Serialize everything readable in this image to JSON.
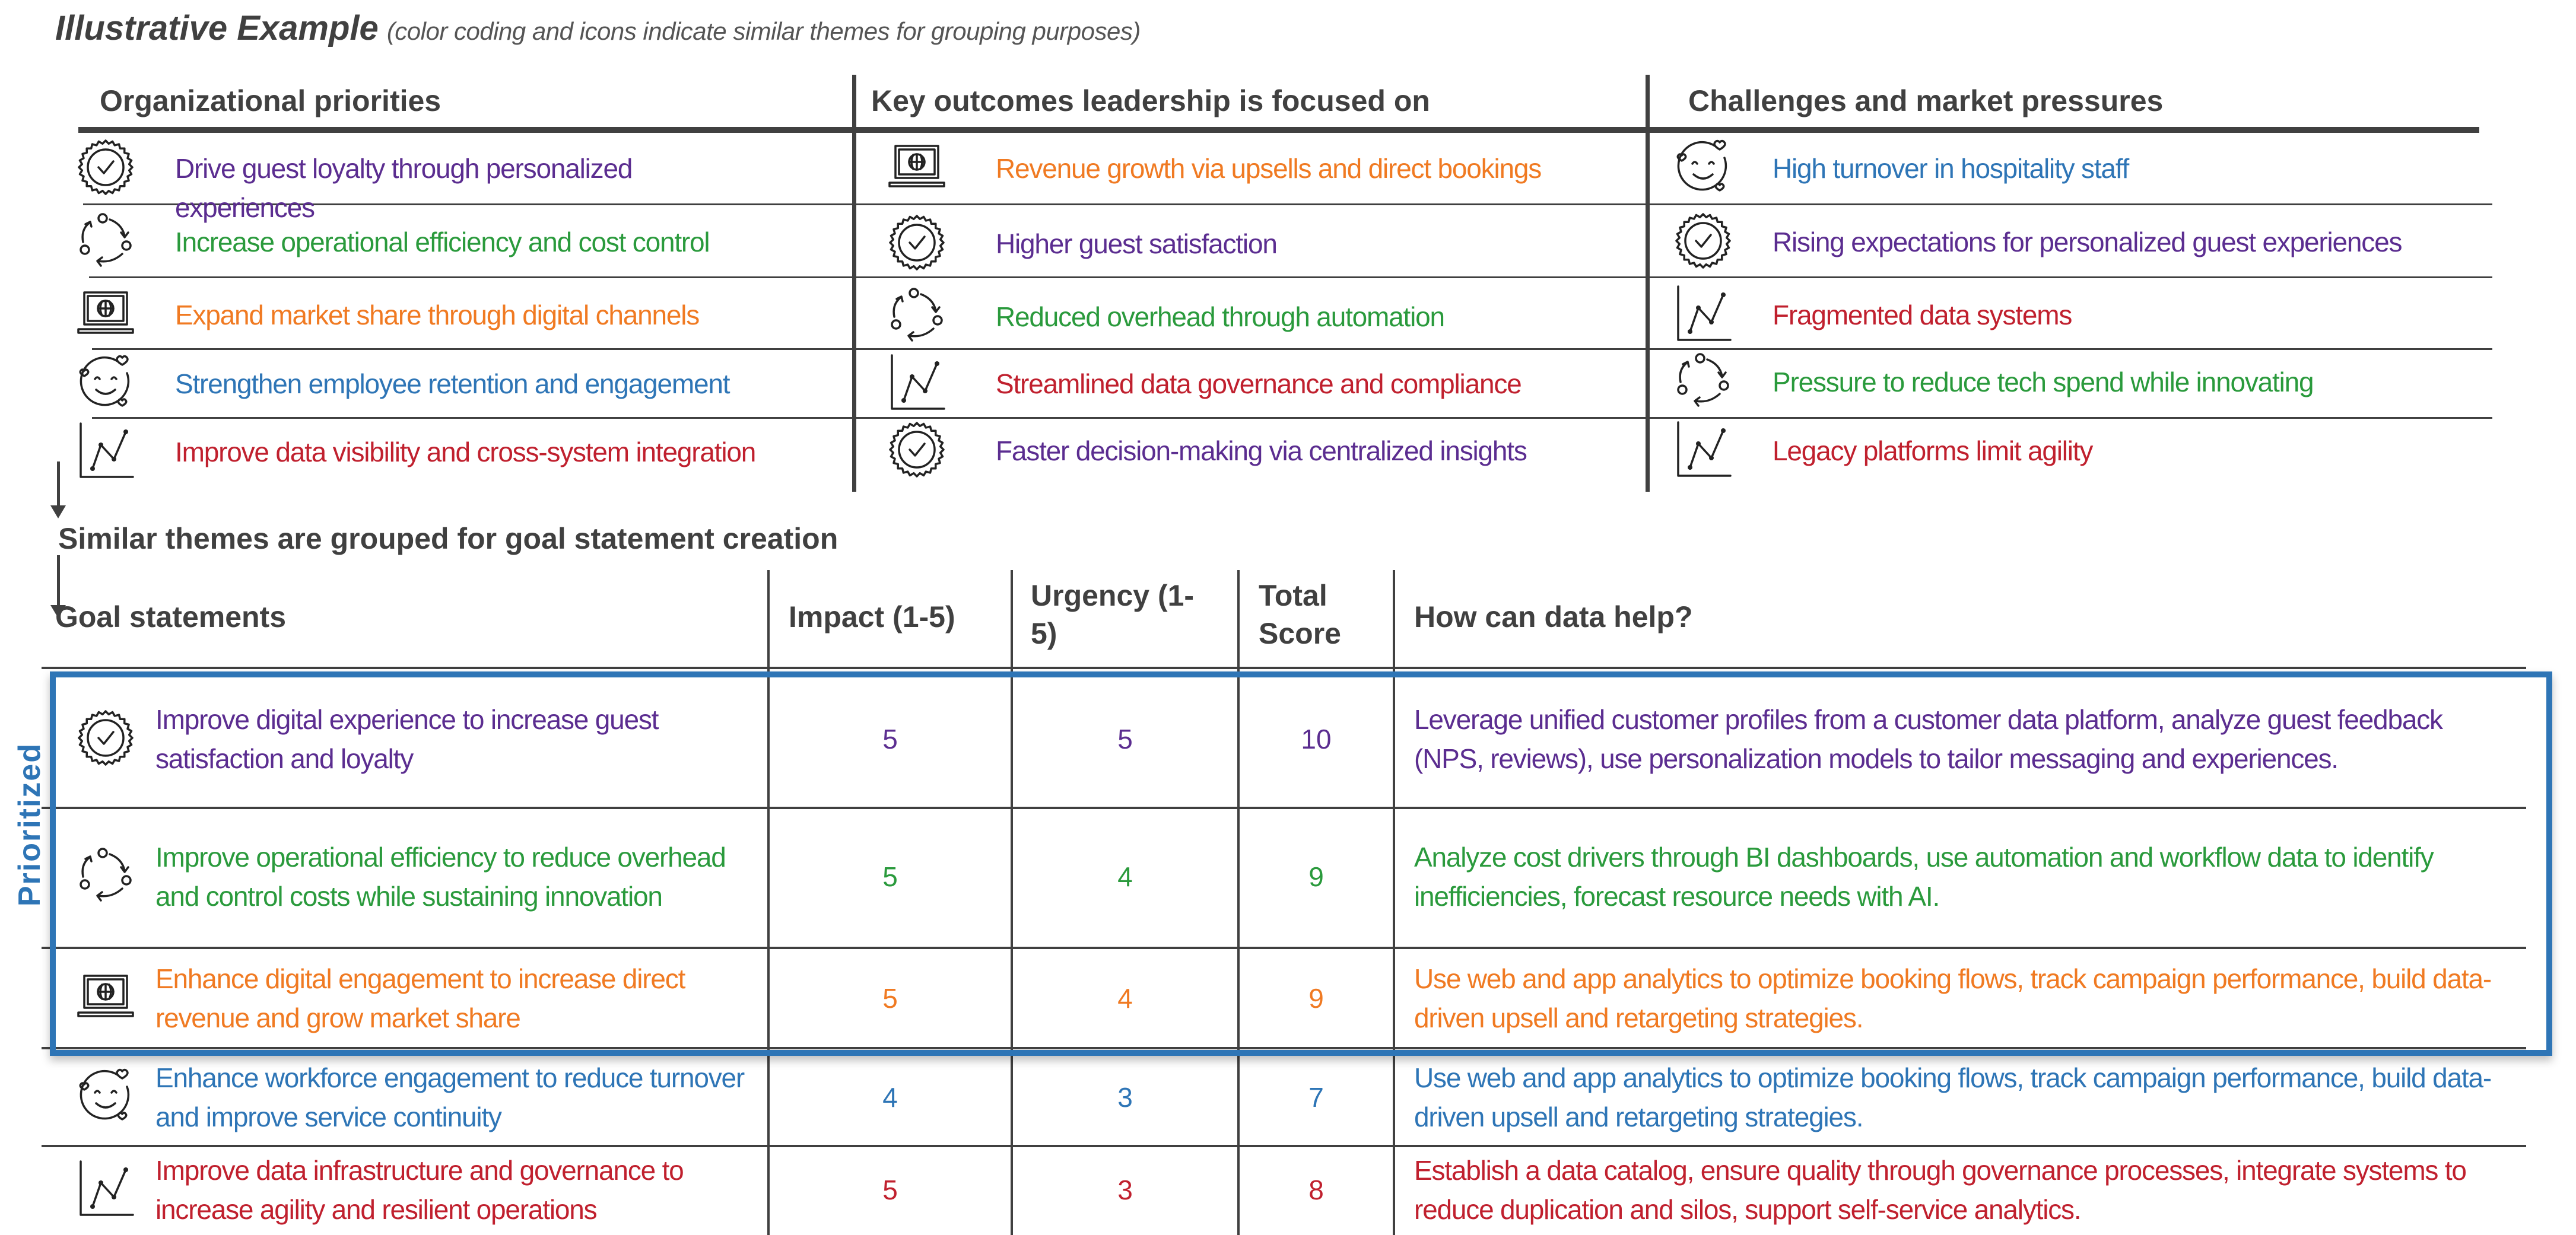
{
  "title": "Illustrative Example",
  "subtitle": "(color coding and icons indicate similar themes for grouping purposes)",
  "colors": {
    "purple": "#5b2d90",
    "green": "#2a9a3c",
    "orange": "#f07a22",
    "blue": "#2e75b6",
    "red": "#c0202e",
    "header": "#404040"
  },
  "top_table": {
    "columns": [
      {
        "header": "Organizational priorities",
        "items": [
          {
            "icon": "badge-check",
            "color": "purple",
            "text": "Drive guest loyalty through personalized experiences"
          },
          {
            "icon": "cycle-arrows",
            "color": "green",
            "text": "Increase operational efficiency and cost control"
          },
          {
            "icon": "laptop-globe",
            "color": "orange",
            "text": "Expand market share through digital channels"
          },
          {
            "icon": "smiley-hearts",
            "color": "blue",
            "text": "Strengthen employee retention and engagement"
          },
          {
            "icon": "line-chart",
            "color": "red",
            "text": "Improve data visibility and cross-system integration"
          }
        ]
      },
      {
        "header": "Key outcomes leadership is focused on",
        "items": [
          {
            "icon": "laptop-globe",
            "color": "orange",
            "text": "Revenue growth via upsells and direct bookings"
          },
          {
            "icon": "badge-check",
            "color": "purple",
            "text": "Higher guest satisfaction"
          },
          {
            "icon": "cycle-arrows",
            "color": "green",
            "text": "Reduced overhead through automation"
          },
          {
            "icon": "line-chart",
            "color": "red",
            "text": "Streamlined data governance and compliance"
          },
          {
            "icon": "badge-check",
            "color": "purple",
            "text": "Faster decision-making via centralized insights"
          }
        ]
      },
      {
        "header": "Challenges and market pressures",
        "items": [
          {
            "icon": "smiley-hearts",
            "color": "blue",
            "text": "High turnover in hospitality staff"
          },
          {
            "icon": "badge-check",
            "color": "purple",
            "text": "Rising expectations for personalized guest experiences"
          },
          {
            "icon": "line-chart",
            "color": "red",
            "text": "Fragmented data systems"
          },
          {
            "icon": "cycle-arrows",
            "color": "green",
            "text": "Pressure to reduce tech spend while innovating"
          },
          {
            "icon": "line-chart",
            "color": "red",
            "text": "Legacy platforms limit agility"
          }
        ]
      }
    ]
  },
  "grouping_note": "Similar themes are grouped for goal statement creation",
  "goal_table": {
    "headers": {
      "goal": "Goal statements",
      "impact": "Impact (1-5)",
      "urgency": "Urgency (1-5)",
      "total": "Total Score",
      "help": "How can data help?"
    },
    "prioritized_label": "Prioritized",
    "rows": [
      {
        "icon": "badge-check",
        "color": "purple",
        "goal": "Improve digital experience to increase guest satisfaction and loyalty",
        "impact": "5",
        "urgency": "5",
        "total": "10",
        "help": "Leverage unified customer profiles from a customer data platform, analyze guest feedback (NPS, reviews), use personalization models to tailor messaging and experiences.",
        "prioritized": true
      },
      {
        "icon": "cycle-arrows",
        "color": "green",
        "goal": "Improve operational efficiency to reduce overhead and control costs while sustaining innovation",
        "impact": "5",
        "urgency": "4",
        "total": "9",
        "help": "Analyze cost drivers through BI dashboards, use automation and workflow data to identify inefficiencies, forecast resource needs with AI.",
        "prioritized": true
      },
      {
        "icon": "laptop-globe",
        "color": "orange",
        "goal": "Enhance digital engagement to increase direct revenue and grow market share",
        "impact": "5",
        "urgency": "4",
        "total": "9",
        "help": "Use web and app analytics to optimize booking flows, track campaign performance, build data-driven upsell and retargeting strategies.",
        "prioritized": true
      },
      {
        "icon": "smiley-hearts",
        "color": "blue",
        "goal": "Enhance workforce engagement to reduce turnover and improve service continuity",
        "impact": "4",
        "urgency": "3",
        "total": "7",
        "help": "Use web and app analytics to optimize booking flows, track campaign performance, build data-driven upsell and retargeting strategies.",
        "prioritized": false
      },
      {
        "icon": "line-chart",
        "color": "red",
        "goal": "Improve data infrastructure and governance to increase agility and resilient operations",
        "impact": "5",
        "urgency": "3",
        "total": "8",
        "help": "Establish a data catalog, ensure quality through governance processes, integrate systems to reduce duplication and silos, support self-service analytics.",
        "prioritized": false
      }
    ]
  }
}
